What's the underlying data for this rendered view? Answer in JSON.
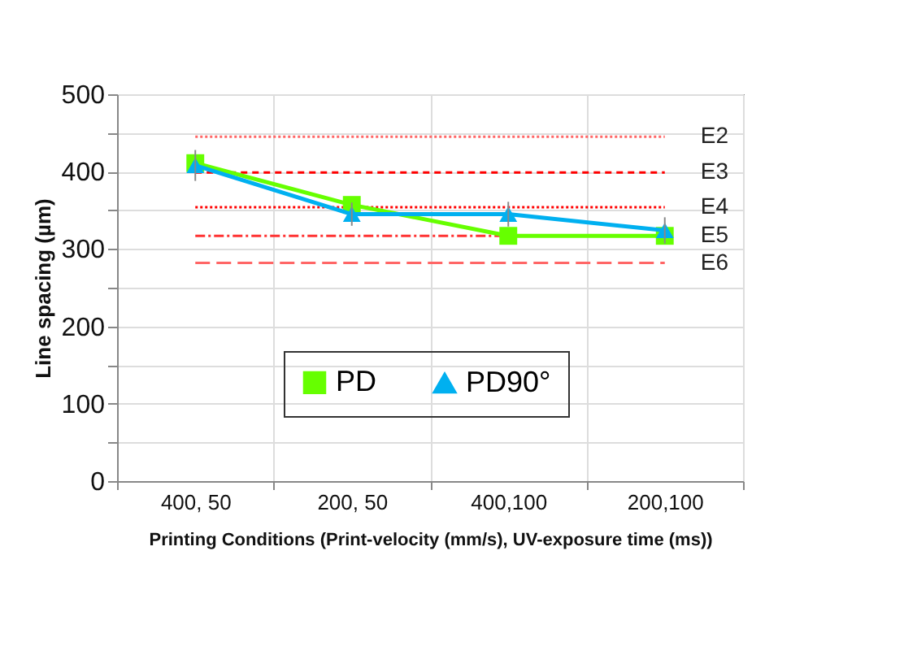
{
  "chart_data": {
    "type": "line",
    "xlabel": "Printing Conditions (Print-velocity (mm/s), UV-exposure time (ms))",
    "ylabel": "Line spacing (µm)",
    "categories": [
      "400, 50",
      "200, 50",
      "400,100",
      "200,100"
    ],
    "series": [
      {
        "name": "PD",
        "color": "#66ff00",
        "marker": "square",
        "values": [
          411,
          357,
          317,
          317
        ]
      },
      {
        "name": "PD90°",
        "color": "#00b0f0",
        "marker": "triangle",
        "values": [
          408,
          345,
          345,
          324
        ],
        "errors": [
          20,
          15,
          16,
          17
        ]
      }
    ],
    "ylim": [
      0,
      500
    ],
    "yticks": [
      0,
      {
        "value": 50,
        "label": null
      },
      100,
      {
        "value": 150,
        "label": null
      },
      200,
      {
        "value": 250,
        "label": null
      },
      300,
      {
        "value": 350,
        "label": null
      },
      400,
      {
        "value": 450,
        "label": null
      },
      500
    ],
    "ref_lines": [
      {
        "axis": "y",
        "value": 445,
        "label": "E2",
        "color": "#ff6666",
        "line_style": "dotted"
      },
      {
        "axis": "y",
        "value": 399,
        "label": "E3",
        "color": "#ff0000",
        "line_style": "dashed"
      },
      {
        "axis": "y",
        "value": 354,
        "label": "E4",
        "color": "#ff0000",
        "line_style": "dotted"
      },
      {
        "axis": "y",
        "value": 317,
        "label": "E5",
        "color": "#ff3333",
        "line_style": "dashdot"
      },
      {
        "axis": "y",
        "value": 282,
        "label": "E6",
        "color": "#ff6666",
        "line_style": "longdash"
      }
    ],
    "grid": true,
    "legend": "bottom"
  }
}
